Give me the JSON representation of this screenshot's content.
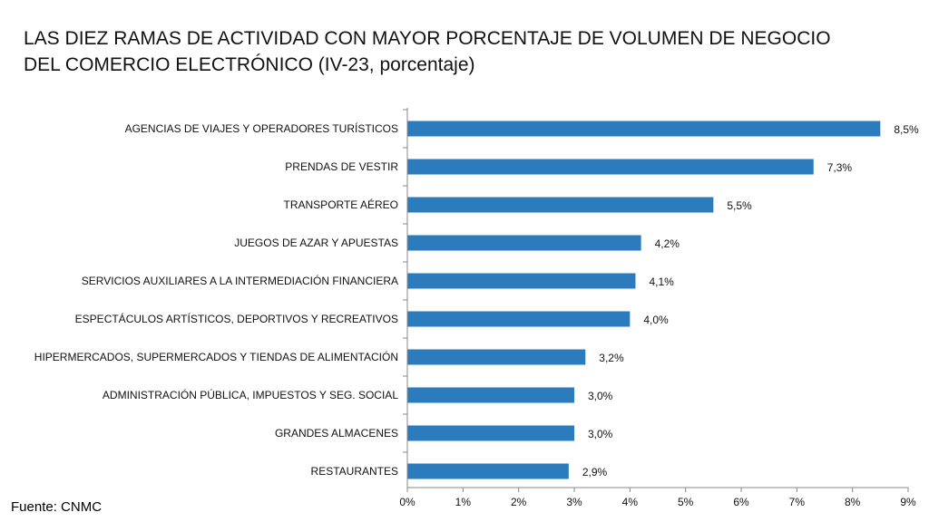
{
  "title_lines": [
    "LAS DIEZ RAMAS DE ACTIVIDAD CON MAYOR PORCENTAJE DE VOLUMEN DE NEGOCIO",
    "DEL COMERCIO ELECTRÓNICO (IV-23, porcentaje)"
  ],
  "source": "Fuente: CNMC",
  "chart_data": {
    "type": "bar",
    "orientation": "horizontal",
    "title": "LAS DIEZ RAMAS DE ACTIVIDAD CON MAYOR PORCENTAJE DE VOLUMEN DE NEGOCIO DEL COMERCIO ELECTRÓNICO (IV-23, porcentaje)",
    "categories": [
      "AGENCIAS DE VIAJES Y OPERADORES TURÍSTICOS",
      "PRENDAS DE VESTIR",
      "TRANSPORTE AÉREO",
      "JUEGOS DE AZAR Y APUESTAS",
      "SERVICIOS AUXILIARES A LA INTERMEDIACIÓN FINANCIERA",
      "ESPECTÁCULOS ARTÍSTICOS, DEPORTIVOS Y RECREATIVOS",
      "HIPERMERCADOS, SUPERMERCADOS Y TIENDAS DE ALIMENTACIÓN",
      "ADMINISTRACIÓN PÚBLICA, IMPUESTOS Y SEG. SOCIAL",
      "GRANDES ALMACENES",
      "RESTAURANTES"
    ],
    "values": [
      8.5,
      7.3,
      5.5,
      4.2,
      4.1,
      4.0,
      3.2,
      3.0,
      3.0,
      2.9
    ],
    "value_labels": [
      "8,5%",
      "7,3%",
      "5,5%",
      "4,2%",
      "4,1%",
      "4,0%",
      "3,2%",
      "3,0%",
      "3,0%",
      "2,9%"
    ],
    "x_ticks": [
      0,
      1,
      2,
      3,
      4,
      5,
      6,
      7,
      8,
      9
    ],
    "x_tick_labels": [
      "0%",
      "1%",
      "2%",
      "3%",
      "4%",
      "5%",
      "6%",
      "7%",
      "8%",
      "9%"
    ],
    "xlim": [
      0,
      9
    ],
    "xlabel": "",
    "ylabel": "",
    "grid": false,
    "legend": "none",
    "bar_color": "#2b7bbd",
    "axis_color": "#888888"
  }
}
